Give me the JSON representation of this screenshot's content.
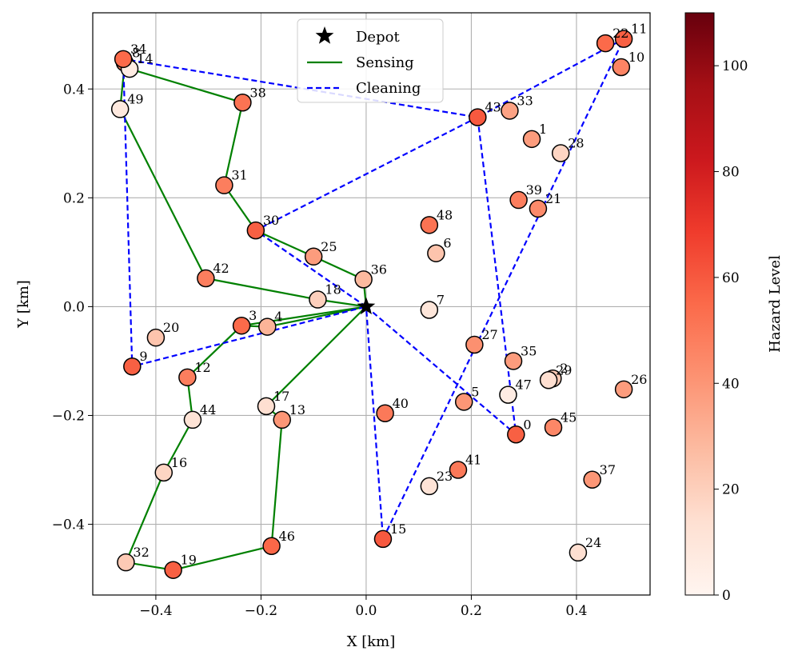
{
  "chart_data": {
    "type": "scatter",
    "xlabel": "X [km]",
    "ylabel": "Y [km]",
    "xlim": [
      -0.52,
      0.54
    ],
    "ylim": [
      -0.53,
      0.54
    ],
    "grid": true,
    "x_ticks": [
      -0.4,
      -0.2,
      0.0,
      0.2,
      0.4
    ],
    "x_tick_labels": [
      "−0.4",
      "−0.2",
      "0.0",
      "0.2",
      "0.4"
    ],
    "y_ticks": [
      -0.4,
      -0.2,
      0.0,
      0.2,
      0.4
    ],
    "y_tick_labels": [
      "−0.4",
      "−0.2",
      "0.0",
      "0.2",
      "0.4"
    ],
    "colorbar": {
      "label": "Hazard Level",
      "min": 0,
      "max": 110,
      "ticks": [
        0,
        20,
        40,
        60,
        80,
        100
      ],
      "tick_labels": [
        "0",
        "20",
        "40",
        "60",
        "80",
        "100"
      ],
      "colormap": "Reds"
    },
    "depot": {
      "x": 0.0,
      "y": 0.0
    },
    "legend": {
      "position": "upper-center",
      "entries": [
        {
          "label": "Depot",
          "marker": "star",
          "color": "#000000"
        },
        {
          "label": "Sensing",
          "style": "solid",
          "color": "#008000"
        },
        {
          "label": "Cleaning",
          "style": "dashed",
          "color": "#0000ff"
        }
      ]
    },
    "nodes": [
      {
        "id": "0",
        "x": 0.285,
        "y": -0.235,
        "hazard": 58
      },
      {
        "id": "1",
        "x": 0.315,
        "y": 0.308,
        "hazard": 38
      },
      {
        "id": "2",
        "x": 0.355,
        "y": -0.132,
        "hazard": 22
      },
      {
        "id": "3",
        "x": -0.237,
        "y": -0.035,
        "hazard": 55
      },
      {
        "id": "4",
        "x": -0.188,
        "y": -0.037,
        "hazard": 30
      },
      {
        "id": "5",
        "x": 0.186,
        "y": -0.175,
        "hazard": 40
      },
      {
        "id": "6",
        "x": 0.133,
        "y": 0.098,
        "hazard": 24
      },
      {
        "id": "7",
        "x": 0.12,
        "y": -0.006,
        "hazard": 10
      },
      {
        "id": "8",
        "x": -0.459,
        "y": 0.448,
        "hazard": 48
      },
      {
        "id": "9",
        "x": -0.445,
        "y": -0.11,
        "hazard": 58
      },
      {
        "id": "10",
        "x": 0.485,
        "y": 0.44,
        "hazard": 46
      },
      {
        "id": "11",
        "x": 0.49,
        "y": 0.492,
        "hazard": 58
      },
      {
        "id": "12",
        "x": -0.34,
        "y": -0.13,
        "hazard": 48
      },
      {
        "id": "13",
        "x": -0.16,
        "y": -0.208,
        "hazard": 40
      },
      {
        "id": "14",
        "x": -0.45,
        "y": 0.437,
        "hazard": 6
      },
      {
        "id": "15",
        "x": 0.032,
        "y": -0.427,
        "hazard": 60
      },
      {
        "id": "16",
        "x": -0.385,
        "y": -0.305,
        "hazard": 18
      },
      {
        "id": "17",
        "x": -0.19,
        "y": -0.183,
        "hazard": 14
      },
      {
        "id": "18",
        "x": -0.092,
        "y": 0.013,
        "hazard": 20
      },
      {
        "id": "19",
        "x": -0.367,
        "y": -0.484,
        "hazard": 58
      },
      {
        "id": "20",
        "x": -0.4,
        "y": -0.057,
        "hazard": 24
      },
      {
        "id": "21",
        "x": 0.327,
        "y": 0.18,
        "hazard": 44
      },
      {
        "id": "22",
        "x": 0.455,
        "y": 0.484,
        "hazard": 55
      },
      {
        "id": "23",
        "x": 0.12,
        "y": -0.33,
        "hazard": 12
      },
      {
        "id": "24",
        "x": 0.403,
        "y": -0.452,
        "hazard": 14
      },
      {
        "id": "25",
        "x": -0.1,
        "y": 0.092,
        "hazard": 38
      },
      {
        "id": "26",
        "x": 0.49,
        "y": -0.152,
        "hazard": 38
      },
      {
        "id": "27",
        "x": 0.206,
        "y": -0.07,
        "hazard": 42
      },
      {
        "id": "28",
        "x": 0.37,
        "y": 0.282,
        "hazard": 18
      },
      {
        "id": "29",
        "x": 0.347,
        "y": -0.135,
        "hazard": 14
      },
      {
        "id": "30",
        "x": -0.21,
        "y": 0.14,
        "hazard": 58
      },
      {
        "id": "31",
        "x": -0.27,
        "y": 0.223,
        "hazard": 48
      },
      {
        "id": "32",
        "x": -0.457,
        "y": -0.47,
        "hazard": 22
      },
      {
        "id": "33",
        "x": 0.273,
        "y": 0.36,
        "hazard": 36
      },
      {
        "id": "34",
        "x": -0.462,
        "y": 0.455,
        "hazard": 55
      },
      {
        "id": "35",
        "x": 0.28,
        "y": -0.1,
        "hazard": 38
      },
      {
        "id": "36",
        "x": -0.005,
        "y": 0.05,
        "hazard": 28
      },
      {
        "id": "37",
        "x": 0.43,
        "y": -0.318,
        "hazard": 40
      },
      {
        "id": "38",
        "x": -0.235,
        "y": 0.375,
        "hazard": 52
      },
      {
        "id": "39",
        "x": 0.29,
        "y": 0.196,
        "hazard": 48
      },
      {
        "id": "40",
        "x": 0.036,
        "y": -0.196,
        "hazard": 50
      },
      {
        "id": "41",
        "x": 0.175,
        "y": -0.3,
        "hazard": 50
      },
      {
        "id": "42",
        "x": -0.305,
        "y": 0.052,
        "hazard": 48
      },
      {
        "id": "43",
        "x": 0.212,
        "y": 0.348,
        "hazard": 60
      },
      {
        "id": "44",
        "x": -0.33,
        "y": -0.208,
        "hazard": 12
      },
      {
        "id": "45",
        "x": 0.356,
        "y": -0.222,
        "hazard": 45
      },
      {
        "id": "46",
        "x": -0.18,
        "y": -0.44,
        "hazard": 56
      },
      {
        "id": "47",
        "x": 0.27,
        "y": -0.162,
        "hazard": 6
      },
      {
        "id": "48",
        "x": 0.12,
        "y": 0.15,
        "hazard": 52
      },
      {
        "id": "49",
        "x": -0.468,
        "y": 0.363,
        "hazard": 8
      }
    ],
    "routes": [
      {
        "name": "Sensing",
        "style": "solid",
        "color": "#008000",
        "paths": [
          [
            "depot",
            "36",
            "25",
            "30",
            "31",
            "38",
            "14",
            "8",
            "49",
            "42",
            "18",
            "depot"
          ],
          [
            "depot",
            "3",
            "12",
            "44",
            "16",
            "32",
            "19",
            "46",
            "13",
            "17",
            "depot"
          ],
          [
            "depot",
            "4",
            "3"
          ]
        ]
      },
      {
        "name": "Cleaning",
        "style": "dashed",
        "color": "#0000ff",
        "paths": [
          [
            "depot",
            "30",
            "43",
            "34",
            "9",
            "depot"
          ],
          [
            "depot",
            "0",
            "43",
            "11",
            "15",
            "depot"
          ]
        ]
      }
    ]
  }
}
